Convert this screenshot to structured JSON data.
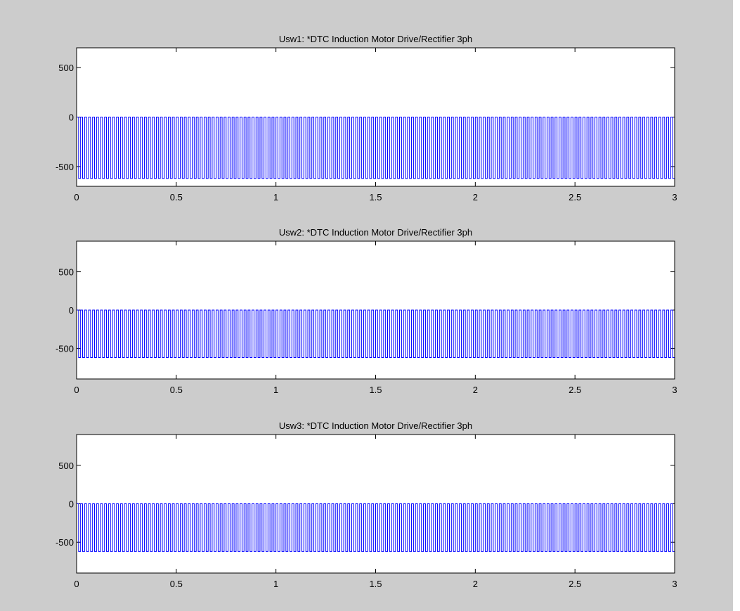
{
  "figure": {
    "background": "#cccccc",
    "line_color": "#0000ff"
  },
  "chart_data": [
    {
      "type": "line",
      "title": "Usw1: *DTC Induction Motor Drive/Rectifier 3ph",
      "xlabel": "",
      "ylabel": "",
      "xlim": [
        0,
        3
      ],
      "ylim": [
        -700,
        700
      ],
      "xticks": [
        "0",
        "0.5",
        "1",
        "1.5",
        "2",
        "2.5",
        "3"
      ],
      "yticks": [
        "500",
        "0",
        "-500"
      ],
      "ytick_values": [
        500,
        0,
        -500
      ],
      "series": [
        {
          "signal": {
            "kind": "square-wave",
            "high": 0,
            "low": -620,
            "frequency_hz": 50,
            "start_value": -650
          }
        }
      ]
    },
    {
      "type": "line",
      "title": "Usw2: *DTC Induction Motor Drive/Rectifier 3ph",
      "xlabel": "",
      "ylabel": "",
      "xlim": [
        0,
        3
      ],
      "ylim": [
        -900,
        900
      ],
      "xticks": [
        "0",
        "0.5",
        "1",
        "1.5",
        "2",
        "2.5",
        "3"
      ],
      "yticks": [
        "500",
        "0",
        "-500"
      ],
      "ytick_values": [
        500,
        0,
        -500
      ],
      "series": [
        {
          "signal": {
            "kind": "square-wave",
            "high": 0,
            "low": -620,
            "frequency_hz": 50,
            "start_value": -880
          }
        }
      ]
    },
    {
      "type": "line",
      "title": "Usw3: *DTC Induction Motor Drive/Rectifier 3ph",
      "xlabel": "",
      "ylabel": "",
      "xlim": [
        0,
        3
      ],
      "ylim": [
        -900,
        900
      ],
      "xticks": [
        "0",
        "0.5",
        "1",
        "1.5",
        "2",
        "2.5",
        "3"
      ],
      "yticks": [
        "500",
        "0",
        "-500"
      ],
      "ytick_values": [
        500,
        0,
        -500
      ],
      "series": [
        {
          "signal": {
            "kind": "square-wave",
            "high": 0,
            "low": -620,
            "frequency_hz": 50,
            "start_value": -880
          }
        }
      ]
    }
  ]
}
